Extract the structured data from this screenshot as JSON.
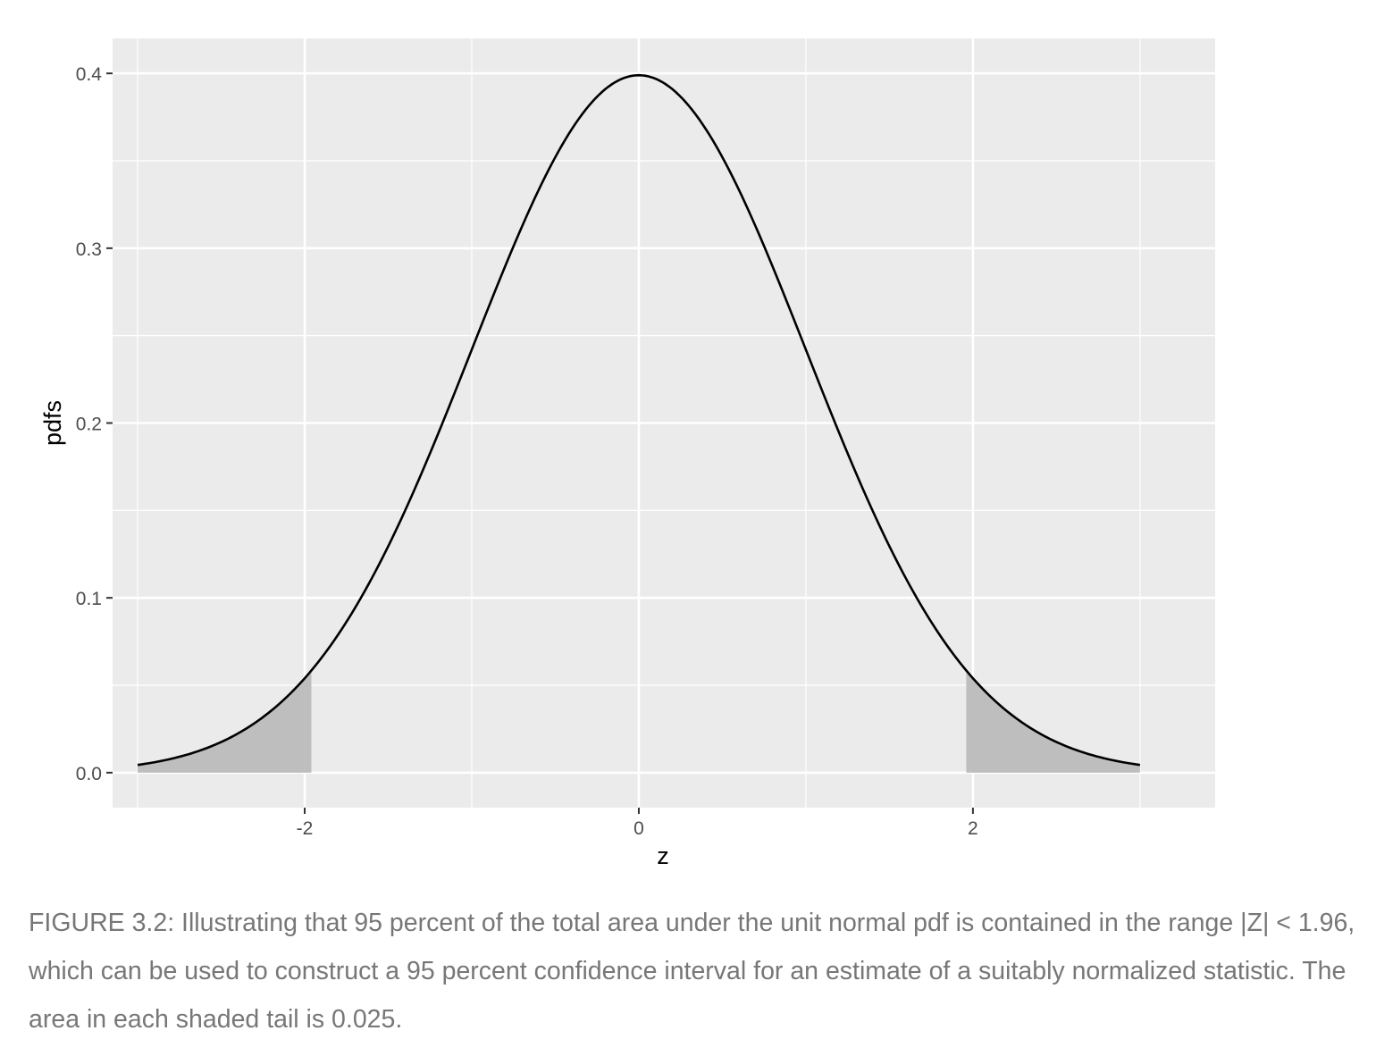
{
  "chart_data": {
    "type": "area",
    "title": "",
    "xlabel": "z",
    "ylabel": "pdfs",
    "xlim": [
      -3.15,
      3.45
    ],
    "ylim": [
      -0.02,
      0.42
    ],
    "x_ticks": [
      -2,
      0,
      2
    ],
    "x_tick_labels": [
      "-2",
      "0",
      "2"
    ],
    "y_ticks": [
      0.0,
      0.1,
      0.2,
      0.3,
      0.4
    ],
    "y_tick_labels": [
      "0.0",
      "0.1",
      "0.2",
      "0.3",
      "0.4"
    ],
    "grid": true,
    "legend": "none",
    "series": [
      {
        "type": "line",
        "function": "standard normal pdf",
        "x_range": [
          -3,
          3
        ],
        "peak": [
          0,
          0.399
        ],
        "color": "#000000"
      }
    ],
    "shaded_regions": [
      {
        "x_range": [
          -3,
          -1.96
        ],
        "color": "#bebebe"
      },
      {
        "x_range": [
          1.96,
          3
        ],
        "color": "#bebebe"
      }
    ],
    "panel_color": "#ebebeb",
    "grid_color": "#ffffff"
  },
  "caption": "FIGURE 3.2: Illustrating that 95 percent of the total area under the unit normal pdf is contained in the range |Z| < 1.96, which can be used to construct a 95 percent confidence interval for an estimate of a suitably normalized statistic. The area in each shaded tail is 0.025."
}
